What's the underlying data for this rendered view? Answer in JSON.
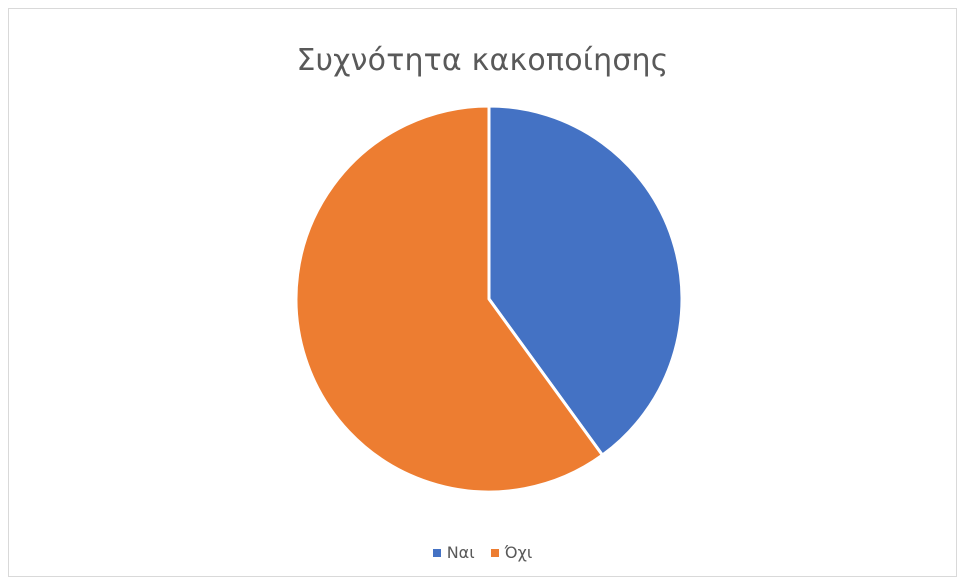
{
  "chart_data": {
    "type": "pie",
    "title": "Συχνότητα κακοποίησης",
    "categories": [
      "Ναι",
      "Όχι"
    ],
    "values": [
      40,
      60
    ],
    "colors": [
      "#4472c4",
      "#ed7d31"
    ],
    "legend_position": "bottom"
  }
}
